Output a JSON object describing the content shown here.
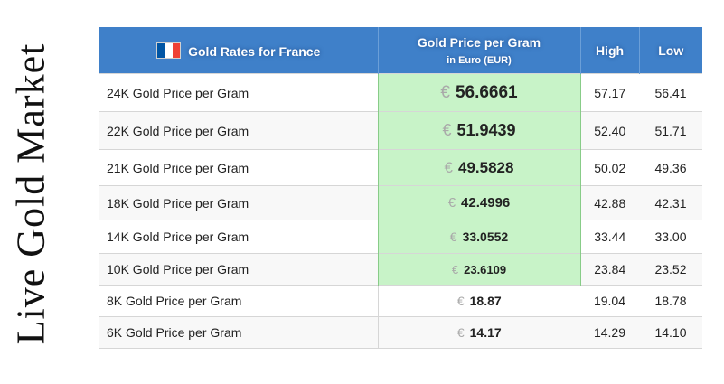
{
  "side_title": "Live Gold Market",
  "header": {
    "country_label": "Gold Rates for France",
    "price_label": "Gold Price per Gram",
    "price_sublabel": "in Euro (EUR)",
    "high_label": "High",
    "low_label": "Low",
    "flag_colors": [
      "#0055a4",
      "#ffffff",
      "#ef4135"
    ]
  },
  "currency_symbol": "€",
  "rows": [
    {
      "name": "24K Gold Price per Gram",
      "price": "56.6661",
      "high": "57.17",
      "low": "56.41",
      "highlight": true
    },
    {
      "name": "22K Gold Price per Gram",
      "price": "51.9439",
      "high": "52.40",
      "low": "51.71",
      "highlight": true
    },
    {
      "name": "21K Gold Price per Gram",
      "price": "49.5828",
      "high": "50.02",
      "low": "49.36",
      "highlight": true
    },
    {
      "name": "18K Gold Price per Gram",
      "price": "42.4996",
      "high": "42.88",
      "low": "42.31",
      "highlight": true
    },
    {
      "name": "14K Gold Price per Gram",
      "price": "33.0552",
      "high": "33.44",
      "low": "33.00",
      "highlight": true
    },
    {
      "name": "10K Gold Price per Gram",
      "price": "23.6109",
      "high": "23.84",
      "low": "23.52",
      "highlight": true
    },
    {
      "name": "8K Gold Price per Gram",
      "price": "18.87",
      "high": "19.04",
      "low": "18.78",
      "highlight": false
    },
    {
      "name": "6K Gold Price per Gram",
      "price": "14.17",
      "high": "14.29",
      "low": "14.10",
      "highlight": false
    }
  ]
}
